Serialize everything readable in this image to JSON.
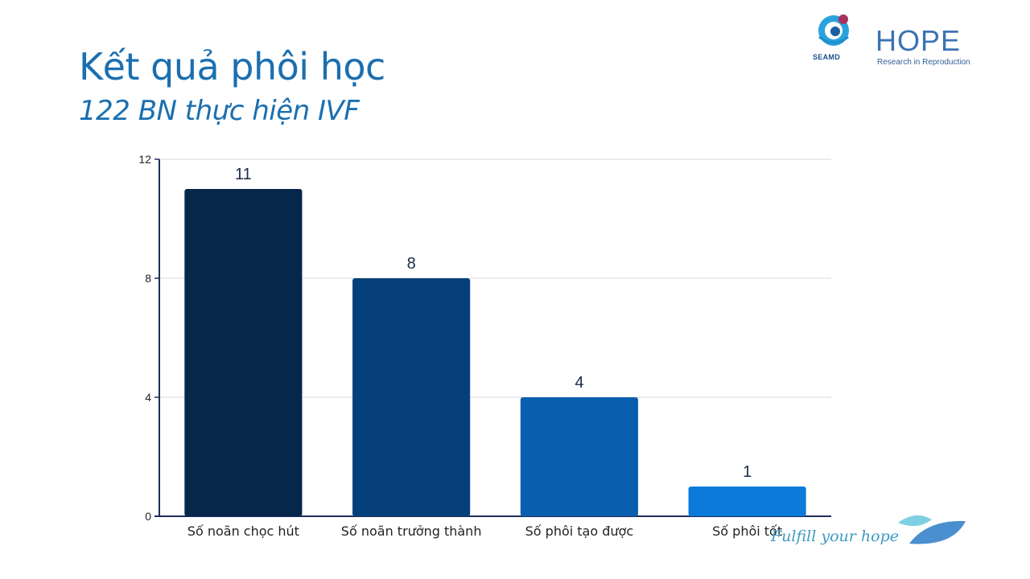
{
  "header": {
    "title": "Kết quả phôi học",
    "subtitle": "122 BN thực hiện IVF"
  },
  "logos": {
    "seamd": "SEAMD",
    "hope": "HOPE",
    "hope_tagline": "Research in Reproduction"
  },
  "footer": {
    "slogan": "Fulfill your hope"
  },
  "colors": {
    "title": "#1a6fb0",
    "bars": [
      "#06264a",
      "#06407a",
      "#0a5eae",
      "#0b7ad8"
    ],
    "axis": "#1f2d5a",
    "grid": "#d9d9d9"
  },
  "chart_data": {
    "type": "bar",
    "categories": [
      "Số noãn chọc hút",
      "Số noãn trưởng thành",
      "Số phôi tạo được",
      "Số phôi tốt"
    ],
    "values": [
      11,
      8,
      4,
      1
    ],
    "data_labels": [
      "11",
      "8",
      "4",
      "1"
    ],
    "yticks": [
      0,
      4,
      8,
      12
    ],
    "ylim": [
      0,
      12
    ],
    "grid": true,
    "legend": "none"
  }
}
